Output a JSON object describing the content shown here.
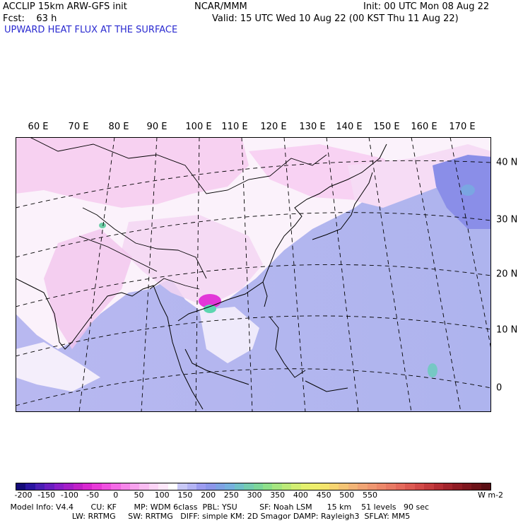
{
  "header": {
    "model": "ACCLIP 15km ARW-GFS init",
    "fcst": "Fcst:    63 h",
    "org": "NCAR/MMM",
    "init": "Init: 00 UTC Mon 08 Aug 22",
    "valid": "Valid: 15 UTC Wed 10 Aug 22 (00 KST Thu 11 Aug 22)",
    "field_title": "UPWARD HEAT FLUX AT THE SURFACE"
  },
  "map": {
    "longitude_labels": [
      "60 E",
      "70 E",
      "80 E",
      "90 E",
      "100 E",
      "110 E",
      "120 E",
      "130 E",
      "140 E",
      "150 E",
      "160 E",
      "170 E"
    ],
    "latitude_labels": [
      "40 N",
      "30 N",
      "20 N",
      "10 N",
      "0"
    ],
    "region": "East Asia / Western Pacific",
    "projection": "Lambert conformal"
  },
  "colorbar": {
    "tick_labels": [
      "-200",
      "-150",
      "-100",
      "-50",
      "0",
      "50",
      "100",
      "150",
      "200",
      "250",
      "300",
      "350",
      "400",
      "450",
      "500",
      "550"
    ],
    "unit": "W m-2",
    "colors": [
      "#140a78",
      "#2a14a0",
      "#4a1eb4",
      "#6a1ec0",
      "#8a1ec8",
      "#a41ec8",
      "#c020c8",
      "#d828d0",
      "#e83ad8",
      "#f050e0",
      "#f46ae6",
      "#f686ea",
      "#f8a2ee",
      "#fabcf2",
      "#fcd4f6",
      "#fee8fa",
      "#ffffff",
      "#c8c8f6",
      "#b4b4f4",
      "#9c9cf0",
      "#8c96ea",
      "#7ea2e4",
      "#76b0de",
      "#70c0c8",
      "#74ccb0",
      "#7cd69a",
      "#8ee08a",
      "#a6e680",
      "#bcea78",
      "#d2ee72",
      "#e4f06e",
      "#eeee6c",
      "#f4e46c",
      "#f6d470",
      "#f4c474",
      "#f2b476",
      "#f0a474",
      "#ee9670",
      "#ec886a",
      "#e87a64",
      "#e46a5c",
      "#dc5a52",
      "#d24a48",
      "#c43c3e",
      "#b42e34",
      "#a2242c",
      "#901c24",
      "#7e161e",
      "#6c1218",
      "#5a0e14"
    ]
  },
  "footer": {
    "line1": "   Model Info: V4.4       CU: KF       MP: WDM 6class  PBL: YSU         SF: Noah LSM      15 km    51 levels   90 sec",
    "line2": "                            LW: RRTMG     SW: RRTMG   DIFF: simple KM: 2D Smagor DAMP: Rayleigh3  SFLAY: MM5"
  }
}
